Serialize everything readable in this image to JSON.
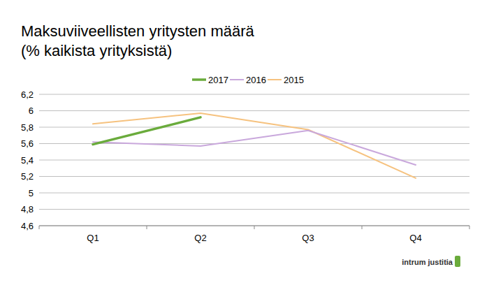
{
  "chart_data": {
    "type": "line",
    "title": "Maksuviiveellisten yritysten määrä",
    "subtitle": "(% kaikista yrityksistä)",
    "categories": [
      "Q1",
      "Q2",
      "Q3",
      "Q4"
    ],
    "series": [
      {
        "name": "2017",
        "color": "#6aab3c",
        "values": [
          5.59,
          5.92,
          null,
          null
        ]
      },
      {
        "name": "2016",
        "color": "#c9a8dc",
        "values": [
          5.62,
          5.57,
          5.76,
          5.34
        ]
      },
      {
        "name": "2015",
        "color": "#f6c27f",
        "values": [
          5.84,
          5.97,
          5.77,
          5.18
        ]
      }
    ],
    "ylim": [
      4.6,
      6.2
    ],
    "yticks": [
      {
        "value": 4.6,
        "label": "4,6"
      },
      {
        "value": 4.8,
        "label": "4,8"
      },
      5,
      {
        "value": 5.2,
        "label": "5,2"
      },
      {
        "value": 5.4,
        "label": "5,4"
      },
      {
        "value": 5.6,
        "label": "5,6"
      },
      {
        "value": 5.8,
        "label": "5,8"
      },
      6,
      {
        "value": 6.2,
        "label": "6,2"
      }
    ],
    "grid": true,
    "legend": "top",
    "annotations": [
      "intrum justitia"
    ]
  }
}
